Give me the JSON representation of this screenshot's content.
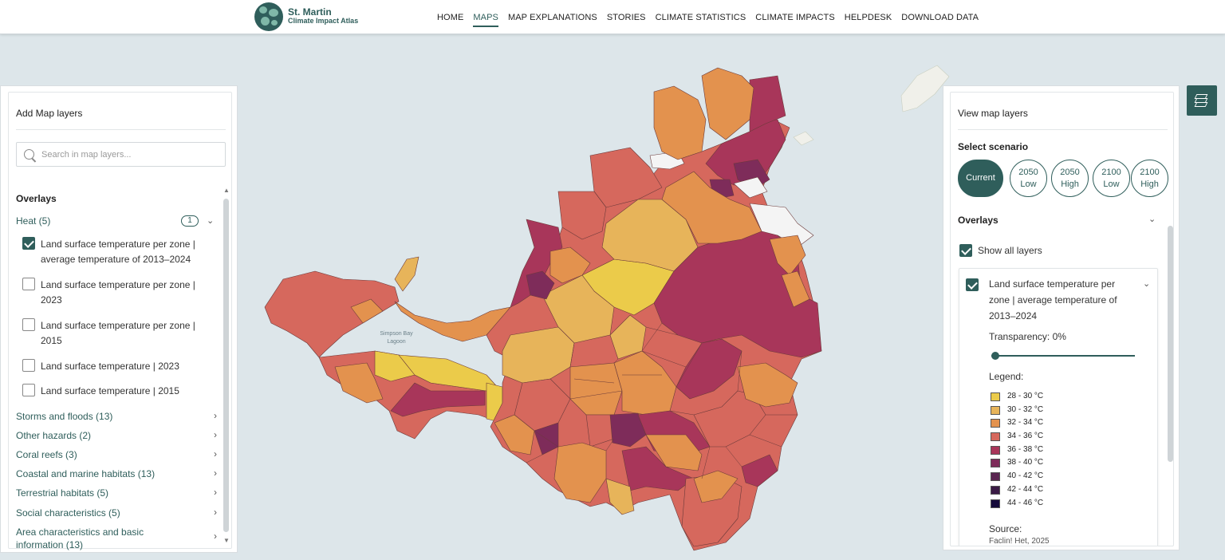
{
  "header": {
    "logo_title": "St. Martin",
    "logo_subtitle": "Climate Impact Atlas",
    "nav": [
      "HOME",
      "MAPS",
      "MAP EXPLANATIONS",
      "STORIES",
      "CLIMATE STATISTICS",
      "CLIMATE IMPACTS",
      "HELPDESK",
      "DOWNLOAD DATA"
    ],
    "active_nav": "MAPS"
  },
  "map": {
    "label_lagoon": "Simpson Bay\nLagoon",
    "colors": {
      "water": "#dde6ea",
      "land_white": "#f4f4f4"
    }
  },
  "left_panel": {
    "title": "Add Map layers",
    "search_placeholder": "Search in map layers...",
    "section": "Overlays",
    "heat_label": "Heat (5)",
    "heat_active_count": "1",
    "heat_layers": [
      {
        "label": "Land surface temperature per zone | average temperature of 2013–2024",
        "checked": true
      },
      {
        "label": "Land surface temperature per zone | 2023",
        "checked": false
      },
      {
        "label": "Land surface temperature per zone | 2015",
        "checked": false
      },
      {
        "label": "Land surface temperature | 2023",
        "checked": false
      },
      {
        "label": "Land surface temperature | 2015",
        "checked": false
      }
    ],
    "categories": [
      "Storms and floods (13)",
      "Other hazards (2)",
      "Coral reefs (3)",
      "Coastal and marine habitats (13)",
      "Terrestrial habitats (5)",
      "Social characteristics (5)",
      "Area characteristics and basic information (13)"
    ]
  },
  "right_panel": {
    "title": "View map layers",
    "scenario_label": "Select scenario",
    "scenarios": [
      {
        "label": "Current",
        "active": true
      },
      {
        "label": "2050 Low",
        "active": false
      },
      {
        "label": "2050 High",
        "active": false
      },
      {
        "label": "2100 Low",
        "active": false
      },
      {
        "label": "2100 High",
        "active": false
      }
    ],
    "overlays_label": "Overlays",
    "show_all_label": "Show all layers",
    "layer_title": "Land surface temperature per zone | average temperature of 2013–2024",
    "transparency_label": "Transparency:",
    "transparency_value": "0%",
    "transparency_fraction": 0,
    "legend_title": "Legend:",
    "legend": [
      {
        "label": "28 - 30 °C",
        "color": "#ebcb4a"
      },
      {
        "label": "30 - 32 °C",
        "color": "#e7b45a"
      },
      {
        "label": "32 - 34 °C",
        "color": "#e3924e"
      },
      {
        "label": "34 - 36 °C",
        "color": "#d6685d"
      },
      {
        "label": "36 - 38 °C",
        "color": "#a8365a"
      },
      {
        "label": "38 - 40 °C",
        "color": "#7e2c5a"
      },
      {
        "label": "40 - 42 °C",
        "color": "#5a2550"
      },
      {
        "label": "42 - 44 °C",
        "color": "#3a1b45"
      },
      {
        "label": "44 - 46 °C",
        "color": "#14093a"
      }
    ],
    "source_label": "Source:",
    "source_value": "Faclin! Het, 2025"
  },
  "icons": {
    "search": "search-icon",
    "chevron": "chevron-down-icon",
    "layers": "layers-icon"
  }
}
